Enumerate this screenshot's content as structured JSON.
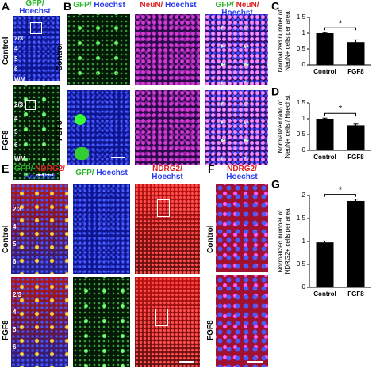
{
  "panels": {
    "A": {
      "label": "A",
      "header": [
        {
          "text": "GFP/",
          "color": "#2bb52b"
        },
        {
          "text": "Hoechst",
          "color": "#2a3cf0"
        }
      ],
      "rows": [
        "Control",
        "FGF8"
      ],
      "layers": [
        "2/3",
        "4",
        "5",
        "6",
        "WM"
      ]
    },
    "B": {
      "label": "B",
      "columns": [
        [
          {
            "text": "GFP/",
            "color": "#2bb52b"
          },
          {
            "text": " Hoechst",
            "color": "#2a3cf0"
          }
        ],
        [
          {
            "text": "NeuN/",
            "color": "#e02020"
          },
          {
            "text": " Hoechst",
            "color": "#2a3cf0"
          }
        ],
        [
          {
            "text": "GFP/",
            "color": "#2bb52b"
          },
          {
            "text": " NeuN/",
            "color": "#e02020"
          },
          {
            "text": " Hoechst",
            "color": "#2a3cf0"
          }
        ]
      ],
      "rows": [
        "Control",
        "FGF8"
      ]
    },
    "E": {
      "label": "E",
      "columns": [
        [
          {
            "text": "GFP/",
            "color": "#2bb52b"
          },
          {
            "text": " NDRG2/",
            "color": "#e02020"
          },
          {
            "text": "Hoechst",
            "color": "#2a3cf0"
          }
        ],
        [
          {
            "text": "GFP/",
            "color": "#2bb52b"
          },
          {
            "text": " Hoechst",
            "color": "#2a3cf0"
          }
        ],
        [
          {
            "text": "NDRG2/",
            "color": "#e02020"
          },
          {
            "text": "Hoechst",
            "color": "#2a3cf0"
          }
        ]
      ],
      "layers": [
        "2/3",
        "4",
        "5",
        "6"
      ]
    },
    "F": {
      "label": "F",
      "header": [
        {
          "text": "NDRG2/",
          "color": "#e02020"
        },
        {
          "text": "Hoechst",
          "color": "#2a3cf0"
        }
      ],
      "rows": [
        "Control",
        "FGF8"
      ]
    }
  },
  "chart_data": [
    {
      "type": "bar",
      "label": "C",
      "ylabel": [
        "Normalized number of",
        "NeuN+ cells per area"
      ],
      "categories": [
        "Control",
        "FGF8"
      ],
      "values": [
        1.0,
        0.72
      ],
      "errors": [
        0.02,
        0.07
      ],
      "color": "#000000",
      "ylim": [
        0,
        1.5
      ],
      "yticks": [
        0,
        0.5,
        1,
        1.5
      ],
      "significance": "*"
    },
    {
      "type": "bar",
      "label": "D",
      "ylabel": [
        "Normalized ratio of",
        "NeuN+ cells / Hoechst"
      ],
      "categories": [
        "Control",
        "FGF8"
      ],
      "values": [
        1.0,
        0.79
      ],
      "errors": [
        0.02,
        0.04
      ],
      "color": "#000000",
      "ylim": [
        0,
        1.5
      ],
      "yticks": [
        0,
        0.5,
        1,
        1.5
      ],
      "significance": "*"
    },
    {
      "type": "bar",
      "label": "G",
      "ylabel": [
        "Normalized number of",
        "NDRG2+ cells per area"
      ],
      "categories": [
        "Control",
        "FGF8"
      ],
      "values": [
        0.98,
        1.88
      ],
      "errors": [
        0.03,
        0.04
      ],
      "color": "#000000",
      "ylim": [
        0,
        2
      ],
      "yticks": [
        0,
        0.5,
        1,
        1.5,
        2
      ],
      "significance": "*"
    }
  ]
}
